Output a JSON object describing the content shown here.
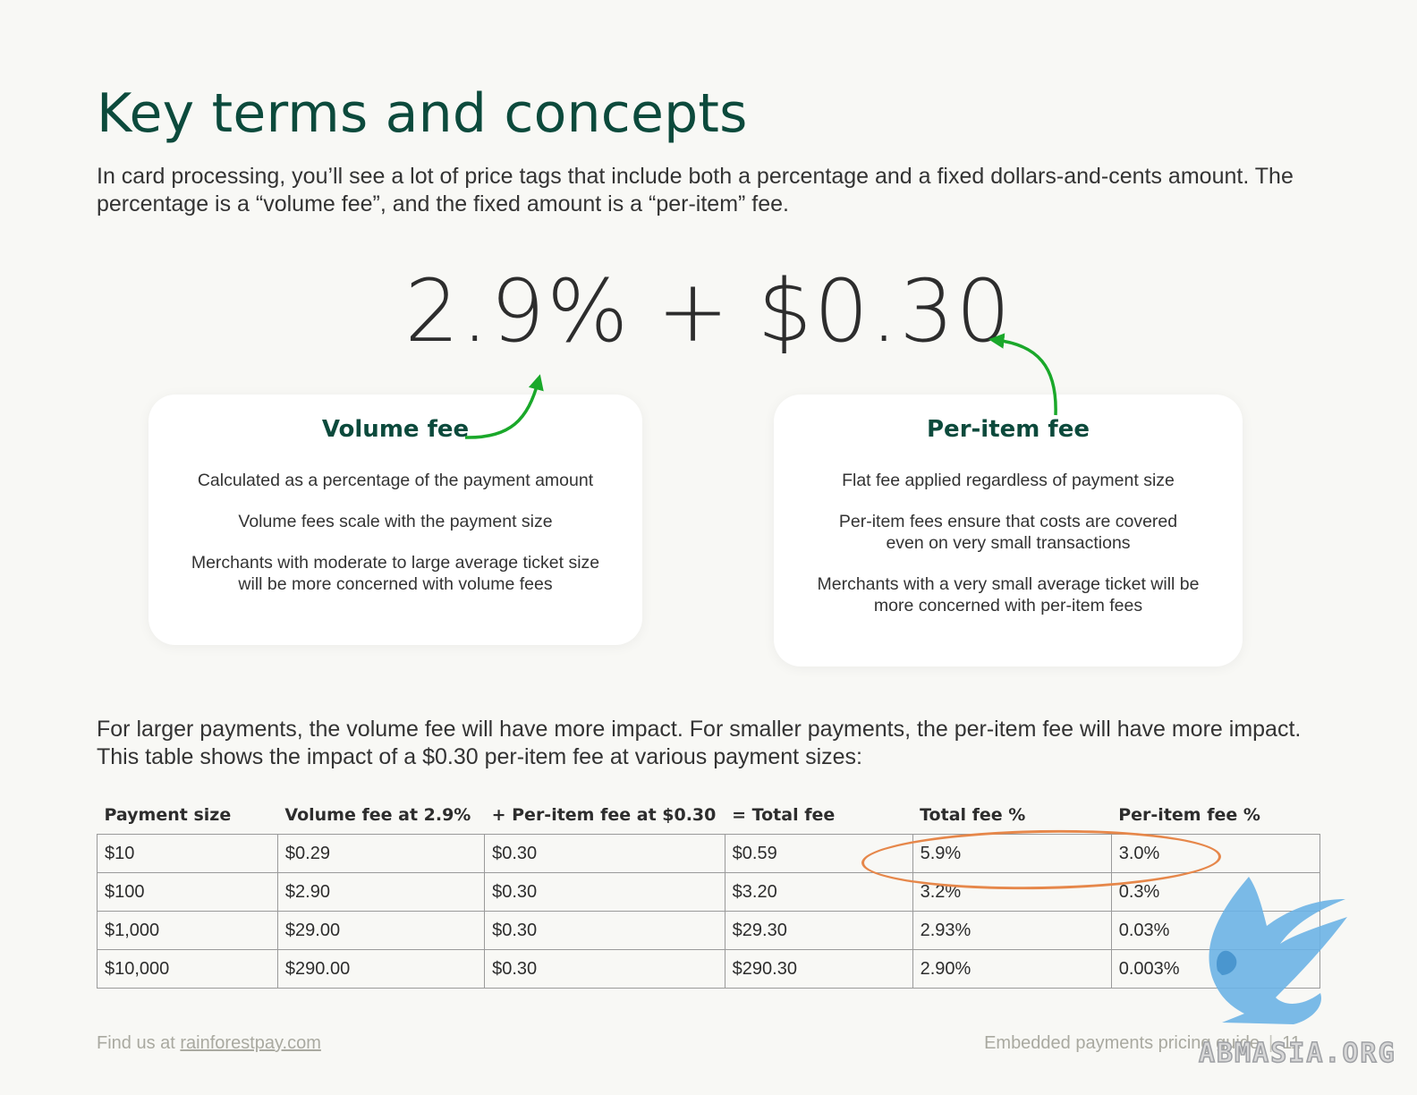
{
  "title": "Key terms and concepts",
  "intro": "In card processing, you’ll see a lot of price tags that include both a percentage and a fixed dollars-and-cents amount. The percentage is a “volume fee”, and the fixed amount is a “per-item” fee.",
  "formula": {
    "volume": "2.9%",
    "plus": "+",
    "peritem": "$0.30"
  },
  "cards": {
    "volume": {
      "title": "Volume fee",
      "lines": [
        "Calculated as a percentage of the payment amount",
        "Volume fees scale with the payment size",
        "Merchants with moderate to large average ticket size will be more concerned with volume fees"
      ]
    },
    "peritem": {
      "title": "Per-item fee",
      "lines": [
        "Flat fee applied regardless of payment size",
        "Per-item fees ensure that costs are covered even on very small transactions",
        "Merchants with a very small average ticket will be more concerned with per-item fees"
      ]
    }
  },
  "lead": "For larger payments, the volume fee will have more impact. For smaller payments, the per-item fee will have more impact. This table shows the impact of a $0.30 per-item fee at various payment sizes:",
  "table": {
    "headers": [
      "Payment size",
      "Volume fee at 2.9%",
      "+ Per-item fee at $0.30",
      "= Total fee",
      "Total fee %",
      "Per-item fee %"
    ],
    "rows": [
      [
        "$10",
        "$0.29",
        "$0.30",
        "$0.59",
        "5.9%",
        "3.0%"
      ],
      [
        "$100",
        "$2.90",
        "$0.30",
        "$3.20",
        "3.2%",
        "0.3%"
      ],
      [
        "$1,000",
        "$29.00",
        "$0.30",
        "$29.30",
        "2.93%",
        "0.03%"
      ],
      [
        "$10,000",
        "$290.00",
        "$0.30",
        "$290.30",
        "2.90%",
        "0.003%"
      ]
    ]
  },
  "footer": {
    "find_prefix": "Find us at",
    "link": "rainforestpay.com",
    "guide": "Embedded payments pricing guide",
    "page": "11"
  },
  "watermark": "ABMASIA.ORG",
  "colors": {
    "heading": "#0c4a3c",
    "arrow": "#1aa82a",
    "highlight": "#e6874a",
    "background": "#f8f8f5"
  }
}
